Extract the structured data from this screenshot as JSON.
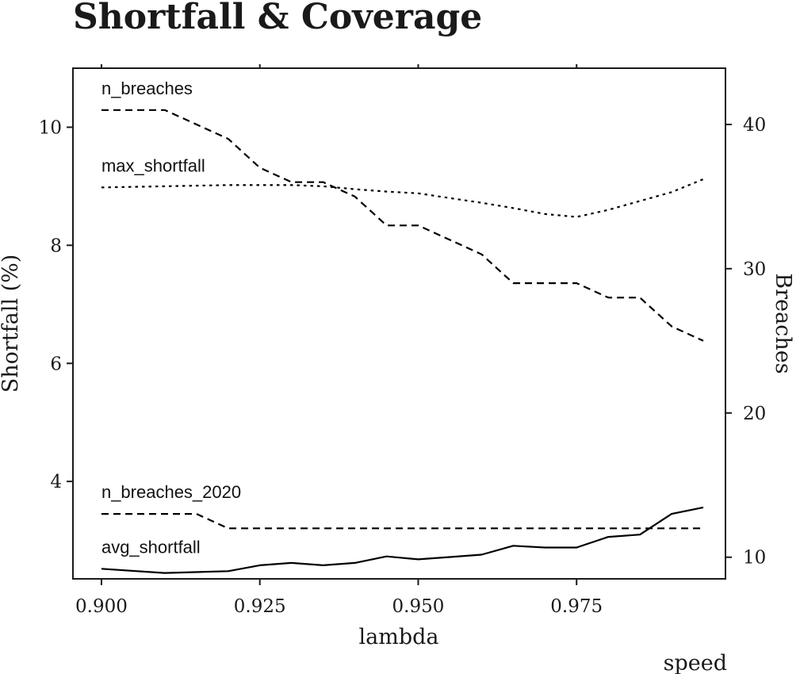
{
  "chart_data": {
    "type": "line",
    "title": "Shortfall & Coverage",
    "xlabel": "lambda",
    "ylabel_left": "Shortfall (%)",
    "ylabel_right": "Breaches",
    "caption": "speed",
    "xlim": [
      0.8955,
      0.9985
    ],
    "ylim_left": [
      2.35,
      11.0
    ],
    "ylim_right": [
      8.5,
      43.9
    ],
    "x_ticks": [
      0.9,
      0.925,
      0.95,
      0.975
    ],
    "x_tick_labels": [
      "0.900",
      "0.925",
      "0.950",
      "0.975"
    ],
    "y_left_ticks": [
      4,
      6,
      8,
      10
    ],
    "y_left_tick_labels": [
      "4",
      "6",
      "8",
      "10"
    ],
    "y_right_ticks": [
      10,
      20,
      30,
      40
    ],
    "y_right_tick_labels": [
      "10",
      "20",
      "30",
      "40"
    ],
    "grid": false,
    "series": [
      {
        "name": "n_breaches",
        "axis": "right",
        "style": "dashed",
        "x": [
          0.9,
          0.91,
          0.92,
          0.925,
          0.93,
          0.935,
          0.94,
          0.945,
          0.95,
          0.955,
          0.96,
          0.965,
          0.97,
          0.975,
          0.98,
          0.985,
          0.99,
          0.995
        ],
        "values": [
          41,
          41,
          39,
          37,
          36,
          36,
          35,
          33,
          33,
          32,
          31,
          29,
          29,
          29,
          28,
          28,
          26,
          25
        ]
      },
      {
        "name": "max_shortfall",
        "axis": "left",
        "style": "dotted",
        "x": [
          0.9,
          0.91,
          0.92,
          0.925,
          0.93,
          0.935,
          0.94,
          0.945,
          0.95,
          0.955,
          0.96,
          0.965,
          0.97,
          0.975,
          0.98,
          0.985,
          0.99,
          0.995
        ],
        "values": [
          8.98,
          9.0,
          9.02,
          9.02,
          9.02,
          9.0,
          8.95,
          8.91,
          8.88,
          8.8,
          8.72,
          8.63,
          8.53,
          8.48,
          8.6,
          8.75,
          8.9,
          9.12
        ]
      },
      {
        "name": "n_breaches_2020",
        "axis": "right",
        "style": "dashed",
        "x": [
          0.9,
          0.915,
          0.92,
          0.925,
          0.93,
          0.935,
          0.94,
          0.945,
          0.95,
          0.955,
          0.96,
          0.965,
          0.97,
          0.975,
          0.98,
          0.985,
          0.99,
          0.995
        ],
        "values": [
          13,
          13,
          12,
          12,
          12,
          12,
          12,
          12,
          12,
          12,
          12,
          12,
          12,
          12,
          12,
          12,
          12,
          12
        ]
      },
      {
        "name": "avg_shortfall",
        "axis": "left",
        "style": "solid",
        "x": [
          0.9,
          0.91,
          0.92,
          0.925,
          0.93,
          0.935,
          0.94,
          0.945,
          0.95,
          0.955,
          0.96,
          0.965,
          0.97,
          0.975,
          0.98,
          0.985,
          0.99,
          0.995
        ],
        "values": [
          2.52,
          2.45,
          2.48,
          2.58,
          2.62,
          2.58,
          2.62,
          2.73,
          2.68,
          2.72,
          2.76,
          2.91,
          2.88,
          2.88,
          3.06,
          3.1,
          3.45,
          3.56
        ]
      }
    ]
  }
}
